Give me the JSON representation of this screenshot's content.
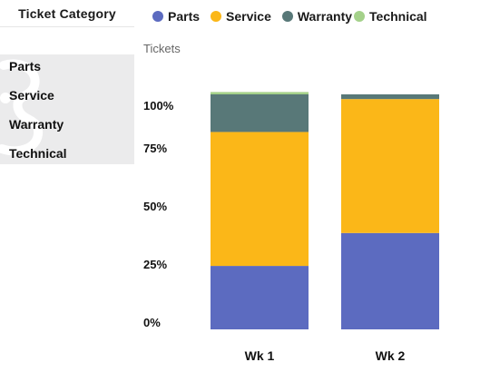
{
  "filter": {
    "title": "Ticket Category",
    "items": [
      {
        "label": "Parts"
      },
      {
        "label": "Service"
      },
      {
        "label": "Warranty"
      },
      {
        "label": "Technical"
      }
    ]
  },
  "colors": {
    "Parts": "#5c6bc0",
    "Service": "#fbb718",
    "Warranty": "#587878",
    "Technical": "#a4d18a"
  },
  "chart_data": {
    "type": "bar",
    "stacked": true,
    "ylabel": "Tickets",
    "ylim": [
      0,
      1.0
    ],
    "yticks": [
      "0%",
      "25%",
      "50%",
      "75%",
      "100%"
    ],
    "categories": [
      "Wk 1",
      "Wk 2"
    ],
    "series": [
      {
        "name": "Parts",
        "values": [
          0.27,
          0.41
        ]
      },
      {
        "name": "Service",
        "values": [
          0.57,
          0.57
        ]
      },
      {
        "name": "Warranty",
        "values": [
          0.16,
          0.02
        ]
      },
      {
        "name": "Technical",
        "values": [
          0.01,
          0.0
        ]
      }
    ],
    "legend": "top"
  }
}
